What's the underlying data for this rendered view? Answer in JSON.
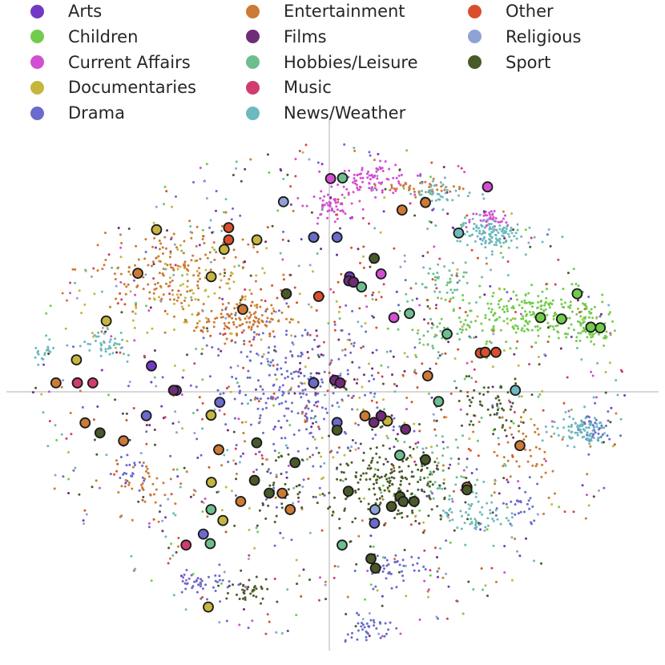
{
  "chart_data": {
    "type": "scatter",
    "title": "",
    "xlabel": "",
    "ylabel": "",
    "xlim": [
      -1,
      1
    ],
    "ylim": [
      -1,
      1
    ],
    "axes_lines": "crosshair at origin (x=0, y=0)",
    "grid": false,
    "legend_placement": "top",
    "legend_columns": 3,
    "series": [
      {
        "name": "Arts",
        "color": "#7139c4",
        "cluster": [],
        "highlighted": [
          [
            -0.555,
            0.095
          ],
          [
            -0.4775,
            0.005
          ],
          [
            -0.049,
            0.0325
          ],
          [
            0.0633,
            0.4225
          ],
          [
            0.0755,
            0.4025
          ]
        ]
      },
      {
        "name": "Children",
        "color": "#72cc4c",
        "cluster": [
          [
            0.64,
            0.285,
            0.29,
            0.095,
            260
          ],
          [
            0.82,
            0.215,
            0.08,
            0.055,
            40
          ]
        ],
        "highlighted": [
          [
            0.7735,
            0.36
          ],
          [
            0.8455,
            0.235
          ],
          [
            0.7245,
            0.2675
          ],
          [
            0.659,
            0.2725
          ],
          [
            0.816,
            0.2375
          ]
        ]
      },
      {
        "name": "Current Affairs",
        "color": "#d34fd1",
        "cluster": [
          [
            0.14,
            0.78,
            0.12,
            0.055,
            90
          ],
          [
            0.0,
            0.68,
            0.06,
            0.05,
            50
          ],
          [
            0.5,
            0.63,
            0.06,
            0.04,
            40
          ]
        ],
        "highlighted": [
          [
            0.0039,
            0.7825
          ],
          [
            0.4937,
            0.7525
          ],
          [
            0.1616,
            0.4325
          ],
          [
            0.2016,
            0.2725
          ]
        ]
      },
      {
        "name": "Documentaries",
        "color": "#c6b63f",
        "cluster": [
          [
            -0.45,
            0.35,
            0.3,
            0.2,
            90
          ],
          [
            0.0,
            0.0,
            0.5,
            0.5,
            60
          ]
        ],
        "highlighted": [
          [
            -0.696,
            0.26
          ],
          [
            -0.539,
            0.595
          ],
          [
            -0.226,
            0.5575
          ],
          [
            -0.328,
            0.5225
          ],
          [
            -0.3685,
            0.4225
          ],
          [
            -0.789,
            0.1175
          ],
          [
            0.1816,
            -0.1075
          ],
          [
            -0.369,
            -0.086
          ],
          [
            -0.3775,
            -0.79
          ],
          [
            -0.368,
            -0.3325
          ],
          [
            -0.332,
            -0.4725
          ]
        ]
      },
      {
        "name": "Drama",
        "color": "#6a6bcc",
        "cluster": [
          [
            -0.1,
            0.0,
            0.28,
            0.27,
            280
          ],
          [
            0.2,
            -0.65,
            0.1,
            0.06,
            40
          ],
          [
            0.13,
            -0.88,
            0.08,
            0.06,
            40
          ],
          [
            -0.4,
            -0.7,
            0.1,
            0.05,
            40
          ],
          [
            -0.62,
            -0.3,
            0.05,
            0.05,
            20
          ],
          [
            0.6,
            -0.43,
            0.06,
            0.08,
            25
          ],
          [
            0.82,
            -0.145,
            0.06,
            0.08,
            40
          ]
        ],
        "highlighted": [
          [
            -0.0484,
            0.5675
          ],
          [
            0.0243,
            0.5675
          ],
          [
            -0.049,
            0.5675
          ],
          [
            -0.342,
            -0.0385
          ],
          [
            -0.571,
            -0.088
          ],
          [
            0.0243,
            -0.1125
          ],
          [
            -0.0484,
            0.0325
          ],
          [
            0.141,
            -0.4825
          ],
          [
            -0.393,
            -0.5225
          ],
          [
            -0.049,
            0.0325
          ]
        ]
      },
      {
        "name": "Entertainment",
        "color": "#cc7a35",
        "cluster": [
          [
            -0.5,
            0.45,
            0.25,
            0.15,
            160
          ],
          [
            -0.28,
            0.27,
            0.14,
            0.07,
            120
          ],
          [
            0.3,
            0.75,
            0.12,
            0.03,
            40
          ],
          [
            0.6,
            -0.2,
            0.15,
            0.2,
            50
          ],
          [
            -0.55,
            -0.35,
            0.12,
            0.1,
            40
          ]
        ],
        "highlighted": [
          [
            -0.853,
            0.0325
          ],
          [
            -0.5975,
            0.435
          ],
          [
            -0.27,
            0.3025
          ],
          [
            0.2269,
            0.6675
          ],
          [
            0.3,
            0.695
          ],
          [
            0.307,
            0.0585
          ],
          [
            0.1113,
            -0.0885
          ],
          [
            -0.762,
            -0.114
          ],
          [
            -0.642,
            -0.18
          ],
          [
            -0.345,
            -0.2125
          ],
          [
            0.5947,
            -0.1975
          ],
          [
            0.4296,
            -0.35
          ],
          [
            -0.147,
            -0.3725
          ],
          [
            -0.2765,
            -0.4025
          ],
          [
            -0.122,
            -0.4325
          ]
        ]
      },
      {
        "name": "Films",
        "color": "#6f2c77",
        "cluster": [
          [
            0.1,
            0.1,
            0.3,
            0.2,
            30
          ]
        ],
        "highlighted": [
          [
            0.0608,
            0.4075
          ],
          [
            0.0755,
            0.4025
          ],
          [
            0.017,
            0.0425
          ],
          [
            0.1616,
            -0.0885
          ],
          [
            0.1393,
            -0.1125
          ],
          [
            0.2381,
            -0.1375
          ],
          [
            -0.486,
            0.0055
          ],
          [
            0.034,
            0.0325
          ]
        ]
      },
      {
        "name": "Hobbies/Leisure",
        "color": "#6dbe8e",
        "cluster": [
          [
            0.35,
            0.42,
            0.12,
            0.07,
            40
          ],
          [
            0.32,
            0.2,
            0.1,
            0.08,
            30
          ],
          [
            0.38,
            -0.3,
            0.12,
            0.15,
            40
          ]
        ],
        "highlighted": [
          [
            0.0413,
            0.785
          ],
          [
            0.1005,
            0.385
          ],
          [
            0.2503,
            0.2875
          ],
          [
            0.3676,
            0.2125
          ],
          [
            0.341,
            -0.0355
          ],
          [
            0.2197,
            -0.233
          ],
          [
            -0.369,
            -0.4325
          ],
          [
            -0.3715,
            -0.5575
          ],
          [
            0.04,
            -0.5625
          ]
        ]
      },
      {
        "name": "Music",
        "color": "#cf3d6f",
        "cluster": [],
        "highlighted": [
          [
            -0.786,
            0.0325
          ],
          [
            -0.786,
            0.0325
          ],
          [
            -0.738,
            0.0325
          ],
          [
            -0.447,
            -0.5625
          ],
          [
            0.4866,
            0.145
          ]
        ]
      },
      {
        "name": "News/Weather",
        "color": "#6cb9be",
        "cluster": [
          [
            0.5,
            0.58,
            0.1,
            0.06,
            120
          ],
          [
            0.78,
            -0.145,
            0.09,
            0.05,
            80
          ],
          [
            0.45,
            -0.45,
            0.1,
            0.1,
            60
          ],
          [
            -0.7,
            0.18,
            0.07,
            0.05,
            40
          ],
          [
            -0.9,
            0.15,
            0.05,
            0.05,
            30
          ],
          [
            0.35,
            0.73,
            0.1,
            0.04,
            40
          ]
        ],
        "highlighted": [
          [
            0.4036,
            0.5825
          ],
          [
            0.5806,
            0.0055
          ]
        ]
      },
      {
        "name": "Other",
        "color": "#d94f2e",
        "cluster": [
          [
            0.0,
            0.2,
            0.55,
            0.45,
            90
          ]
        ],
        "highlighted": [
          [
            -0.314,
            0.6025
          ],
          [
            -0.314,
            0.5575
          ],
          [
            -0.0332,
            0.35
          ],
          [
            0.4712,
            0.1425
          ],
          [
            0.4866,
            0.145
          ],
          [
            0.52,
            0.145
          ]
        ]
      },
      {
        "name": "Religious",
        "color": "#8fa2d4",
        "cluster": [],
        "highlighted": [
          [
            -0.143,
            0.6975
          ],
          [
            0.1425,
            -0.4325
          ]
        ]
      },
      {
        "name": "Sport",
        "color": "#495a2a",
        "cluster": [
          [
            0.2,
            -0.35,
            0.2,
            0.17,
            220
          ],
          [
            0.5,
            -0.05,
            0.12,
            0.1,
            60
          ],
          [
            -0.25,
            -0.72,
            0.1,
            0.05,
            40
          ],
          [
            -0.15,
            -0.35,
            0.1,
            0.12,
            40
          ]
        ],
        "highlighted": [
          [
            0.1402,
            0.49
          ],
          [
            -0.134,
            0.36
          ],
          [
            0.0243,
            -0.141
          ],
          [
            -0.2265,
            -0.187
          ],
          [
            -0.107,
            -0.26
          ],
          [
            -0.7155,
            -0.151
          ],
          [
            -0.2335,
            -0.325
          ],
          [
            -0.1876,
            -0.372
          ],
          [
            0.2208,
            -0.385
          ],
          [
            0.0595,
            -0.365
          ],
          [
            0.2647,
            -0.4025
          ],
          [
            0.2305,
            -0.4025
          ],
          [
            0.4296,
            -0.36
          ],
          [
            0.3,
            -0.249
          ],
          [
            0.194,
            -0.421
          ],
          [
            0.13,
            -0.6125
          ],
          [
            0.144,
            -0.6475
          ]
        ]
      }
    ]
  }
}
